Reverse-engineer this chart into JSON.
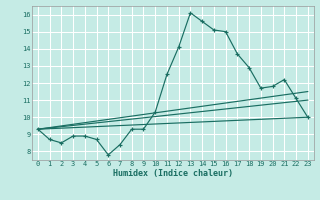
{
  "xlabel": "Humidex (Indice chaleur)",
  "xlim": [
    -0.5,
    23.5
  ],
  "ylim": [
    7.5,
    16.5
  ],
  "xticks": [
    0,
    1,
    2,
    3,
    4,
    5,
    6,
    7,
    8,
    9,
    10,
    11,
    12,
    13,
    14,
    15,
    16,
    17,
    18,
    19,
    20,
    21,
    22,
    23
  ],
  "yticks": [
    8,
    9,
    10,
    11,
    12,
    13,
    14,
    15,
    16
  ],
  "bg_color": "#c5ebe5",
  "grid_color": "#ffffff",
  "line_color": "#1a6e62",
  "main_x": [
    0,
    1,
    2,
    3,
    4,
    5,
    6,
    7,
    8,
    9,
    10,
    11,
    12,
    13,
    14,
    15,
    16,
    17,
    18,
    19,
    20,
    21,
    22,
    23
  ],
  "main_y": [
    9.3,
    8.7,
    8.5,
    8.9,
    8.9,
    8.7,
    7.8,
    8.4,
    9.3,
    9.3,
    10.3,
    12.5,
    14.1,
    16.1,
    15.6,
    15.1,
    15.0,
    13.7,
    12.9,
    11.7,
    11.8,
    12.2,
    11.1,
    10.0
  ],
  "trend_lines": [
    {
      "x0": 0,
      "y0": 9.3,
      "x1": 23,
      "y1": 10.0
    },
    {
      "x0": 0,
      "y0": 9.3,
      "x1": 23,
      "y1": 11.5
    },
    {
      "x0": 0,
      "y0": 9.3,
      "x1": 23,
      "y1": 11.0
    }
  ]
}
